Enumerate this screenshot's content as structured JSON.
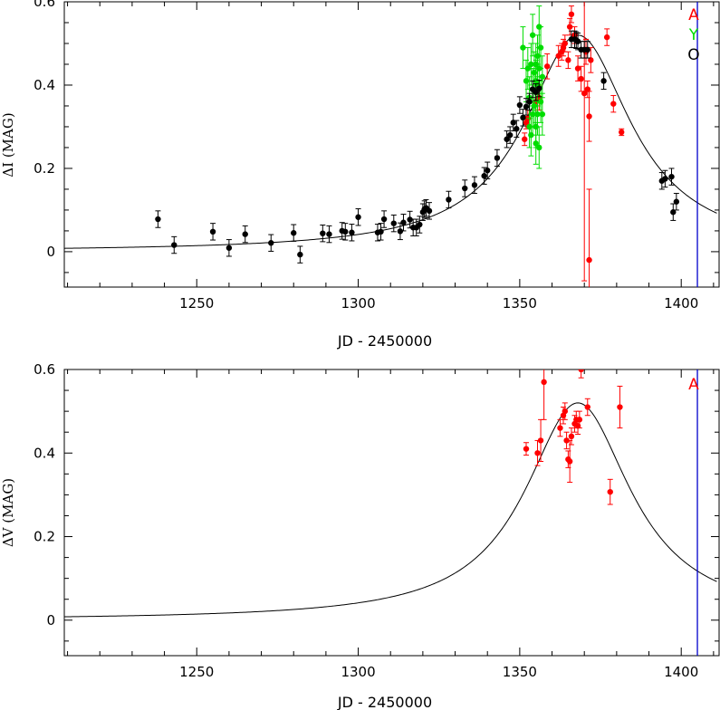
{
  "chart_data": [
    {
      "type": "scatter",
      "panel": "top",
      "xlabel": "JD - 2450000",
      "ylabel": "ΔI  (MAG)",
      "xlim": [
        1209,
        1412
      ],
      "ylim": [
        -0.085,
        0.6
      ],
      "xticks": [
        1250,
        1300,
        1350,
        1400
      ],
      "yticks": [
        0,
        0.2,
        0.4,
        0.6
      ],
      "ytick_labels": [
        "0",
        "0.2",
        "0.4",
        "0.6"
      ],
      "grid": false,
      "legend_position": "top-right",
      "vline_x": 1405,
      "vline_color": "#0000cc",
      "series": [
        {
          "name": "A",
          "color": "#ff0000",
          "points": [
            [
              1351.5,
              0.27,
              0.015
            ],
            [
              1352,
              0.31,
              0.015
            ],
            [
              1352.5,
              0.32,
              0.02
            ],
            [
              1355,
              0.36,
              0.03
            ],
            [
              1356,
              0.37,
              0.03
            ],
            [
              1358.5,
              0.445,
              0.03
            ],
            [
              1362,
              0.47,
              0.025
            ],
            [
              1363,
              0.48,
              0.02
            ],
            [
              1363.5,
              0.49,
              0.02
            ],
            [
              1364,
              0.5,
              0.02
            ],
            [
              1365,
              0.46,
              0.02
            ],
            [
              1365.5,
              0.54,
              0.02
            ],
            [
              1366,
              0.57,
              0.02
            ],
            [
              1367,
              0.52,
              0.02
            ],
            [
              1368,
              0.44,
              0.03
            ],
            [
              1369,
              0.415,
              0.03
            ],
            [
              1370,
              0.38,
              0.45
            ],
            [
              1370.5,
              0.48,
              0.03
            ],
            [
              1371,
              0.39,
              0.02
            ],
            [
              1371.5,
              -0.02,
              0.17
            ],
            [
              1371.5,
              0.325,
              0.06
            ],
            [
              1372,
              0.46,
              0.03
            ],
            [
              1377,
              0.515,
              0.02
            ],
            [
              1379,
              0.355,
              0.02
            ],
            [
              1381.5,
              0.287,
              0.008
            ]
          ]
        },
        {
          "name": "Y",
          "color": "#00dd00",
          "points": [
            [
              1351,
              0.49,
              0.05
            ],
            [
              1352,
              0.41,
              0.05
            ],
            [
              1352.5,
              0.44,
              0.05
            ],
            [
              1353,
              0.37,
              0.05
            ],
            [
              1353,
              0.3,
              0.05
            ],
            [
              1353.5,
              0.45,
              0.05
            ],
            [
              1353.5,
              0.28,
              0.05
            ],
            [
              1354,
              0.52,
              0.05
            ],
            [
              1354,
              0.33,
              0.05
            ],
            [
              1354,
              0.39,
              0.05
            ],
            [
              1354.5,
              0.43,
              0.05
            ],
            [
              1354.5,
              0.35,
              0.05
            ],
            [
              1355,
              0.45,
              0.05
            ],
            [
              1355,
              0.26,
              0.05
            ],
            [
              1355,
              0.3,
              0.05
            ],
            [
              1355,
              0.41,
              0.05
            ],
            [
              1355.5,
              0.47,
              0.05
            ],
            [
              1355.5,
              0.4,
              0.05
            ],
            [
              1355.5,
              0.33,
              0.05
            ],
            [
              1356,
              0.54,
              0.05
            ],
            [
              1356,
              0.25,
              0.05
            ],
            [
              1356,
              0.44,
              0.05
            ],
            [
              1356.5,
              0.49,
              0.05
            ],
            [
              1356.5,
              0.36,
              0.05
            ],
            [
              1357,
              0.42,
              0.05
            ],
            [
              1357,
              0.33,
              0.05
            ]
          ]
        },
        {
          "name": "O",
          "color": "#000000",
          "points": [
            [
              1238,
              0.078,
              0.02
            ],
            [
              1243,
              0.016,
              0.02
            ],
            [
              1255,
              0.048,
              0.02
            ],
            [
              1260,
              0.009,
              0.02
            ],
            [
              1265,
              0.042,
              0.02
            ],
            [
              1273,
              0.021,
              0.02
            ],
            [
              1280,
              0.045,
              0.02
            ],
            [
              1282,
              -0.007,
              0.02
            ],
            [
              1289,
              0.044,
              0.02
            ],
            [
              1291,
              0.042,
              0.02
            ],
            [
              1295,
              0.05,
              0.02
            ],
            [
              1296,
              0.048,
              0.02
            ],
            [
              1298,
              0.046,
              0.02
            ],
            [
              1300,
              0.083,
              0.02
            ],
            [
              1306,
              0.046,
              0.02
            ],
            [
              1307,
              0.048,
              0.02
            ],
            [
              1308,
              0.078,
              0.02
            ],
            [
              1311,
              0.068,
              0.02
            ],
            [
              1313,
              0.049,
              0.02
            ],
            [
              1314,
              0.07,
              0.02
            ],
            [
              1316,
              0.077,
              0.02
            ],
            [
              1317,
              0.058,
              0.02
            ],
            [
              1318,
              0.058,
              0.02
            ],
            [
              1319,
              0.065,
              0.02
            ],
            [
              1320,
              0.095,
              0.02
            ],
            [
              1320.5,
              0.102,
              0.02
            ],
            [
              1321,
              0.105,
              0.02
            ],
            [
              1322,
              0.098,
              0.02
            ],
            [
              1328,
              0.125,
              0.02
            ],
            [
              1333,
              0.152,
              0.02
            ],
            [
              1336,
              0.16,
              0.02
            ],
            [
              1339,
              0.182,
              0.02
            ],
            [
              1340,
              0.195,
              0.02
            ],
            [
              1343,
              0.225,
              0.02
            ],
            [
              1346,
              0.27,
              0.02
            ],
            [
              1347,
              0.28,
              0.02
            ],
            [
              1348,
              0.31,
              0.02
            ],
            [
              1349,
              0.295,
              0.02
            ],
            [
              1350,
              0.352,
              0.02
            ],
            [
              1351,
              0.322,
              0.02
            ],
            [
              1352,
              0.348,
              0.02
            ],
            [
              1353,
              0.36,
              0.02
            ],
            [
              1354,
              0.39,
              0.02
            ],
            [
              1355,
              0.383,
              0.02
            ],
            [
              1356,
              0.392,
              0.02
            ],
            [
              1366,
              0.51,
              0.02
            ],
            [
              1367,
              0.51,
              0.02
            ],
            [
              1367.5,
              0.508,
              0.02
            ],
            [
              1368,
              0.505,
              0.02
            ],
            [
              1369,
              0.485,
              0.02
            ],
            [
              1370,
              0.485,
              0.02
            ],
            [
              1371,
              0.485,
              0.02
            ],
            [
              1376,
              0.41,
              0.02
            ],
            [
              1394,
              0.17,
              0.02
            ],
            [
              1395,
              0.175,
              0.02
            ],
            [
              1397,
              0.18,
              0.02
            ],
            [
              1397.5,
              0.095,
              0.02
            ],
            [
              1398.5,
              0.12,
              0.02
            ]
          ]
        }
      ],
      "model_curve": {
        "peak_x": 1368,
        "peak_y": 0.52,
        "ends": [
          1209,
          1411
        ]
      },
      "legend": [
        {
          "label": "A",
          "color": "#ff0000"
        },
        {
          "label": "Y",
          "color": "#00dd00"
        },
        {
          "label": "O",
          "color": "#000000"
        }
      ]
    },
    {
      "type": "scatter",
      "panel": "bottom",
      "xlabel": "JD - 2450000",
      "ylabel": "ΔV  (MAG)",
      "xlim": [
        1209,
        1412
      ],
      "ylim": [
        -0.085,
        0.6
      ],
      "xticks": [
        1250,
        1300,
        1350,
        1400
      ],
      "yticks": [
        0,
        0.2,
        0.4,
        0.6
      ],
      "ytick_labels": [
        "0",
        "0.2",
        "0.4",
        "0.6"
      ],
      "grid": false,
      "legend_position": "top-right",
      "vline_x": 1405,
      "vline_color": "#0000cc",
      "series": [
        {
          "name": "A",
          "color": "#ff0000",
          "points": [
            [
              1352,
              0.41,
              0.015
            ],
            [
              1355.5,
              0.4,
              0.03
            ],
            [
              1356.5,
              0.43,
              0.05
            ],
            [
              1357.5,
              0.57,
              0.09
            ],
            [
              1362.5,
              0.46,
              0.02
            ],
            [
              1363.5,
              0.49,
              0.02
            ],
            [
              1364,
              0.5,
              0.02
            ],
            [
              1364.5,
              0.43,
              0.02
            ],
            [
              1365,
              0.385,
              0.02
            ],
            [
              1365.5,
              0.38,
              0.05
            ],
            [
              1366,
              0.44,
              0.02
            ],
            [
              1367,
              0.47,
              0.02
            ],
            [
              1367.5,
              0.48,
              0.02
            ],
            [
              1368,
              0.465,
              0.02
            ],
            [
              1368.5,
              0.48,
              0.02
            ],
            [
              1369,
              0.6,
              0.02
            ],
            [
              1371,
              0.51,
              0.02
            ],
            [
              1378,
              0.307,
              0.03
            ],
            [
              1381,
              0.51,
              0.05
            ]
          ]
        }
      ],
      "model_curve": {
        "peak_x": 1368,
        "peak_y": 0.52,
        "ends": [
          1209,
          1411
        ]
      },
      "legend": [
        {
          "label": "A",
          "color": "#ff0000"
        }
      ]
    }
  ]
}
